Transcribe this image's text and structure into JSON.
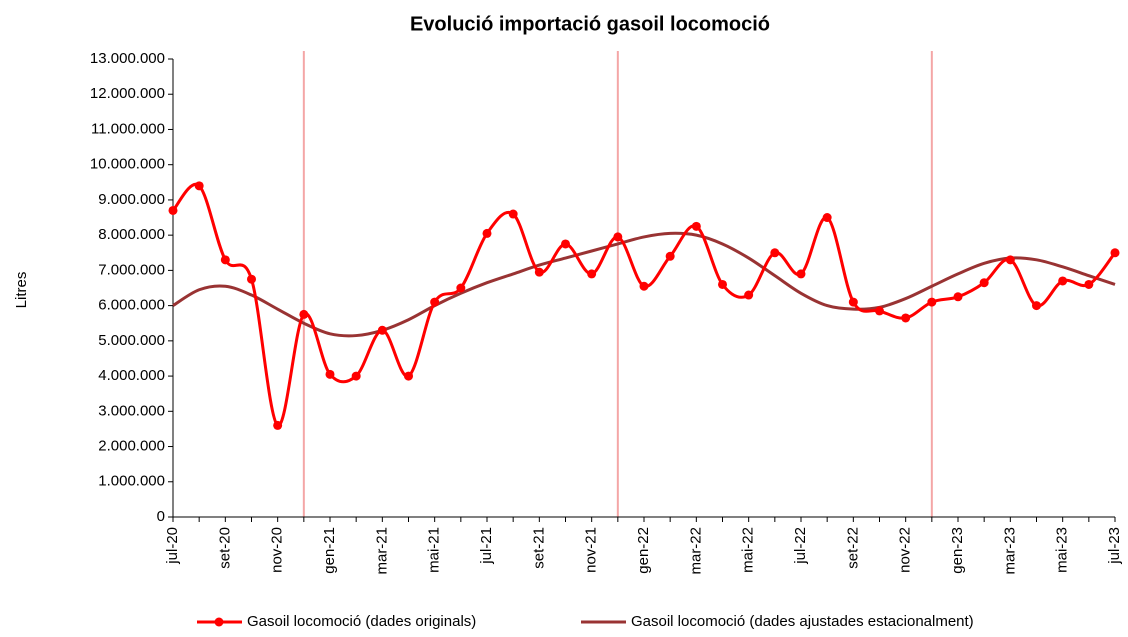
{
  "chart_data": {
    "type": "line",
    "title": "Evolució importació gasoil locomoció",
    "y_label": "Litres",
    "categories": [
      "jul-20",
      null,
      "set-20",
      null,
      "nov-20",
      null,
      "gen-21",
      null,
      "mar-21",
      null,
      "mai-21",
      null,
      "jul-21",
      null,
      "set-21",
      null,
      "nov-21",
      null,
      "gen-22",
      null,
      "mar-22",
      null,
      "mai-22",
      null,
      "jul-22",
      null,
      "set-22",
      null,
      "nov-22",
      null,
      "gen-23",
      null,
      "mar-23",
      null,
      "mai-23",
      null,
      "jul-23"
    ],
    "series": [
      {
        "name": "Gasoil locomoció (dades originals)",
        "color": "#ff0000",
        "markers": true,
        "values": [
          8700000,
          9400000,
          7300000,
          6750000,
          2600000,
          5750000,
          4050000,
          4000000,
          5300000,
          4000000,
          6100000,
          6500000,
          8050000,
          8600000,
          6950000,
          7750000,
          6900000,
          7950000,
          6550000,
          7400000,
          8250000,
          6600000,
          6300000,
          7500000,
          6900000,
          8500000,
          6100000,
          5850000,
          5650000,
          6100000,
          6250000,
          6650000,
          7300000,
          6000000,
          6700000,
          6600000,
          7500000
        ]
      },
      {
        "name": "Gasoil locomoció (dades ajustades estacionalment)",
        "color": "#993333",
        "markers": false,
        "values": [
          6000000,
          6450000,
          6550000,
          6300000,
          5900000,
          5500000,
          5200000,
          5150000,
          5300000,
          5600000,
          6000000,
          6350000,
          6650000,
          6900000,
          7150000,
          7350000,
          7550000,
          7750000,
          7950000,
          8050000,
          8000000,
          7750000,
          7350000,
          6850000,
          6350000,
          6000000,
          5900000,
          5950000,
          6200000,
          6550000,
          6900000,
          7200000,
          7350000,
          7300000,
          7100000,
          6850000,
          6600000
        ]
      }
    ],
    "ylim": [
      0,
      13000000
    ],
    "yticks": [
      0,
      {
        "value": 1000000,
        "label": "1.000.000"
      },
      {
        "value": 2000000,
        "label": "2.000.000"
      },
      {
        "value": 3000000,
        "label": "3.000.000"
      },
      {
        "value": 4000000,
        "label": "4.000.000"
      },
      {
        "value": 5000000,
        "label": "5.000.000"
      },
      {
        "value": 6000000,
        "label": "6.000.000"
      },
      {
        "value": 7000000,
        "label": "7.000.000"
      },
      {
        "value": 8000000,
        "label": "8.000.000"
      },
      {
        "value": 9000000,
        "label": "9.000.000"
      },
      {
        "value": 10000000,
        "label": "10.000.000"
      },
      {
        "value": 11000000,
        "label": "11.000.000"
      },
      {
        "value": 12000000,
        "label": "12.000.000"
      },
      {
        "value": 13000000,
        "label": "13.000.000"
      }
    ],
    "vlines": [
      5,
      17,
      29
    ],
    "vline_color": "#f4a6a6",
    "legend": "bottom"
  }
}
